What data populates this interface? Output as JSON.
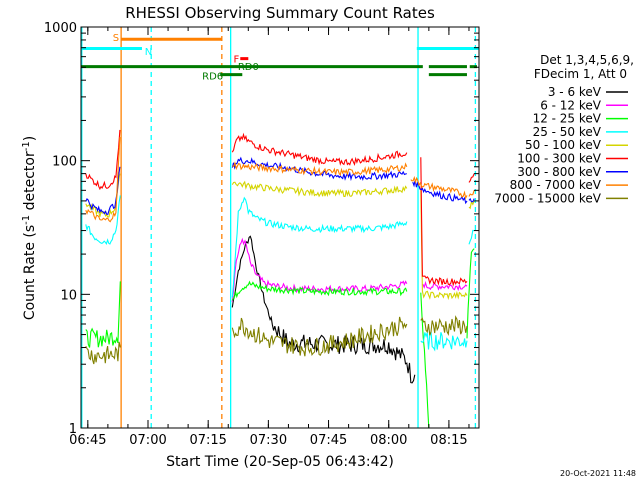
{
  "chart_data": {
    "type": "line",
    "title": "RHESSI Observing Summary Count Rates",
    "xlabel": "Start Time (20-Sep-05 06:43:42)",
    "ylabel_main": "Count Rate (s",
    "ylabel_sup": "-1",
    "ylabel_tail": " detector",
    "ylabel_sup2": "-1",
    "ylabel_close": ")",
    "y_scale": "log",
    "ylim": [
      1,
      1000
    ],
    "xlim_minutes": [
      -1.7,
      97.5
    ],
    "x_ticks": [
      {
        "m": 0,
        "label": "06:45"
      },
      {
        "m": 15,
        "label": "07:00"
      },
      {
        "m": 30,
        "label": "07:15"
      },
      {
        "m": 45,
        "label": "07:30"
      },
      {
        "m": 60,
        "label": "07:45"
      },
      {
        "m": 75,
        "label": "08:00"
      },
      {
        "m": 90,
        "label": "08:15"
      }
    ],
    "y_ticks": [
      {
        "v": 1,
        "label": "1"
      },
      {
        "v": 10,
        "label": "10"
      },
      {
        "v": 100,
        "label": "100"
      },
      {
        "v": 1000,
        "label": "1000"
      }
    ],
    "legend": {
      "placement": "right",
      "header1": "Det 1,3,4,5,6,9,",
      "header2": "FDecim 1, Att 0",
      "entries": [
        {
          "label": "3 - 6 keV",
          "color": "#000000"
        },
        {
          "label": "6 - 12 keV",
          "color": "#ff00ff"
        },
        {
          "label": "12 - 25 keV",
          "color": "#00ff00"
        },
        {
          "label": "25 - 50 keV",
          "color": "#00ffff"
        },
        {
          "label": "50 - 100 keV",
          "color": "#d4d400"
        },
        {
          "label": "100 - 300 keV",
          "color": "#ff0000"
        },
        {
          "label": "300 - 800 keV",
          "color": "#0000ff"
        },
        {
          "label": "800 - 7000 keV",
          "color": "#ff8000"
        },
        {
          "label": "7000 - 15000 keV",
          "color": "#808000"
        }
      ]
    },
    "flags": [
      {
        "label": "S",
        "color": "#ff8000",
        "start": 8.2,
        "end": 33.5,
        "y": 810
      },
      {
        "label": "N",
        "color": "#00ffff",
        "start": -1.7,
        "end": 13.5,
        "y": 690
      },
      {
        "label": "N",
        "color": "#00ffff",
        "start": 82.0,
        "end": 97.5,
        "y": 690
      },
      {
        "label": "F",
        "color": "#ff0000",
        "start": 38.0,
        "end": 40.0,
        "y": 580
      },
      {
        "label": "RD0",
        "color": "#007a00",
        "start": -1.7,
        "end": 83.5,
        "y": 505
      },
      {
        "label": "RD0",
        "color": "#007a00",
        "start": 85.0,
        "end": 94.5,
        "y": 505
      },
      {
        "label": "RD0",
        "color": "#007a00",
        "start": 95.2,
        "end": 97.0,
        "y": 505
      },
      {
        "label": "RD6",
        "color": "#007a00",
        "start": 33.0,
        "end": 38.5,
        "y": 440
      },
      {
        "label": "RD6",
        "color": "#007a00",
        "start": 85.0,
        "end": 94.5,
        "y": 440
      }
    ],
    "flag_labels": [
      {
        "text": "S",
        "color": "#ff8000",
        "m": 6.2,
        "y": 840
      },
      {
        "text": "N",
        "color": "#00ffff",
        "m": 14.2,
        "y": 660
      },
      {
        "text": "F",
        "color": "#ff0000",
        "m": 36.3,
        "y": 580
      },
      {
        "text": "RD0",
        "color": "#007a00",
        "m": 37.4,
        "y": 510
      },
      {
        "text": "RD6",
        "color": "#007a00",
        "m": 28.5,
        "y": 435
      }
    ],
    "vlines": [
      {
        "m": -1.5,
        "color": "#00ffff",
        "dash": false
      },
      {
        "m": 8.3,
        "color": "#ff8000",
        "dash": false
      },
      {
        "m": 15.8,
        "color": "#00ffff",
        "dash": true
      },
      {
        "m": 33.4,
        "color": "#ff8000",
        "dash": true
      },
      {
        "m": 35.6,
        "color": "#00ffff",
        "dash": false
      },
      {
        "m": 82.3,
        "color": "#00ffff",
        "dash": false
      },
      {
        "m": 96.6,
        "color": "#00ffff",
        "dash": true
      }
    ],
    "series": [
      {
        "name": "3 - 6 keV",
        "color": "#000000",
        "segments": [
          {
            "x": [
              36.0,
              37.5,
              39.0,
              40.5,
              42.0,
              44.0,
              46.0,
              50.0,
              55.0,
              60.0,
              65.0,
              70.0,
              75.0,
              77.0,
              79.5,
              80.5,
              81.5
            ],
            "y": [
              8,
              15,
              22,
              28,
              16,
              9,
              6,
              4.3,
              4.3,
              4.2,
              4.2,
              4.2,
              4.2,
              3.7,
              3.2,
              2.5,
              2.5
            ]
          }
        ]
      },
      {
        "name": "6 - 12 keV",
        "color": "#ff00ff",
        "segments": [
          {
            "x": [
              36.0,
              37.0,
              38.5,
              39.5,
              40.5,
              42.0,
              44.0,
              47.0,
              52.0,
              58.0,
              64.0,
              70.0,
              76.0,
              79.5
            ],
            "y": [
              9,
              18,
              26,
              23,
              17,
              14,
              12,
              11.5,
              11,
              11,
              11,
              11,
              11.5,
              12
            ]
          },
          {
            "x": [
              83.5,
              84.5,
              88.0,
              92.0,
              94.5
            ],
            "y": [
              12,
              11.5,
              11.5,
              11.5,
              11.5
            ]
          }
        ]
      },
      {
        "name": "12 - 25 keV",
        "color": "#00ff00",
        "segments": [
          {
            "x": [
              -0.5,
              2.0,
              5.0,
              7.5,
              8.1
            ],
            "y": [
              4.7,
              4.7,
              4.7,
              5.0,
              12.5
            ]
          },
          {
            "x": [
              36.0,
              38.0,
              40.0,
              42.0,
              45.0,
              50.0,
              55.0,
              60.0,
              65.0,
              70.0,
              75.0,
              79.5
            ],
            "y": [
              9,
              11,
              12,
              11.5,
              11,
              10.8,
              10.5,
              10.5,
              10.5,
              10.5,
              10.5,
              10.5
            ]
          },
          {
            "x": [
              83.0,
              83.6,
              85.0
            ],
            "y": [
              10,
              5,
              1
            ]
          },
          {
            "x": [
              94.5,
              95.6,
              96.3
            ],
            "y": [
              5,
              20,
              22
            ]
          }
        ]
      },
      {
        "name": "25 - 50 keV",
        "color": "#00ffff",
        "segments": [
          {
            "x": [
              -0.5,
              1.5,
              3.5,
              5.5,
              7.0,
              8.1
            ],
            "y": [
              33,
              27,
              25,
              25,
              30,
              55
            ]
          },
          {
            "x": [
              36.0,
              37.5,
              39.0,
              40.0,
              42.0,
              45.0,
              50.0,
              55.0,
              60.0,
              65.0,
              70.0,
              75.0,
              79.0,
              79.5
            ],
            "y": [
              9,
              40,
              55,
              42,
              37,
              34,
              32,
              31,
              31,
              31,
              31,
              32,
              34,
              35
            ]
          },
          {
            "x": [
              83.0,
              84.0,
              88.0,
              94.5
            ],
            "y": [
              4.5,
              4.5,
              4.5,
              4.5
            ]
          },
          {
            "x": [
              95.0,
              95.6,
              96.3
            ],
            "y": [
              25,
              27,
              30
            ]
          }
        ]
      },
      {
        "name": "50 - 100 keV",
        "color": "#d4d400",
        "segments": [
          {
            "x": [
              -0.5,
              1.0,
              3.0,
              5.0,
              7.0,
              8.0
            ],
            "y": [
              48,
              44,
              40,
              39,
              45,
              80
            ]
          },
          {
            "x": [
              36.0,
              37.0,
              40.0,
              45.0,
              50.0,
              55.0,
              60.0,
              65.0,
              70.0,
              75.0,
              79.5
            ],
            "y": [
              70,
              68,
              65,
              62,
              60,
              58,
              57,
              57,
              58,
              60,
              62
            ]
          },
          {
            "x": [
              83.0,
              83.4,
              88.0,
              92.0,
              94.5
            ],
            "y": [
              60,
              10,
              9.8,
              9.8,
              9.8
            ]
          },
          {
            "x": [
              95.0,
              95.6,
              96.3
            ],
            "y": [
              45,
              47,
              50
            ]
          }
        ]
      },
      {
        "name": "100 - 300 keV",
        "color": "#ff0000",
        "segments": [
          {
            "x": [
              -0.5,
              1.0,
              3.0,
              5.0,
              7.0,
              8.0
            ],
            "y": [
              80,
              72,
              65,
              65,
              75,
              170
            ]
          },
          {
            "x": [
              36.0,
              37.0,
              38.5,
              40.0,
              42.0,
              45.0,
              50.0,
              55.0,
              60.0,
              65.0,
              70.0,
              75.0,
              79.5
            ],
            "y": [
              110,
              140,
              150,
              140,
              130,
              120,
              112,
              104,
              98,
              98,
              102,
              108,
              115
            ]
          },
          {
            "x": [
              83.0,
              83.4,
              88.0,
              92.0,
              94.5
            ],
            "y": [
              110,
              13,
              12.5,
              12.5,
              12.5
            ]
          },
          {
            "x": [
              95.0,
              95.6,
              96.3
            ],
            "y": [
              70,
              75,
              80
            ]
          }
        ]
      },
      {
        "name": "300 - 800 keV",
        "color": "#0000ff",
        "segments": [
          {
            "x": [
              -0.5,
              1.0,
              3.0,
              5.0,
              7.0,
              8.0
            ],
            "y": [
              52,
              46,
              42,
              42,
              48,
              90
            ]
          },
          {
            "x": [
              36.0,
              37.5,
              40.0,
              42.0,
              45.0,
              50.0,
              55.0,
              60.0,
              65.0,
              70.0,
              75.0,
              79.5
            ],
            "y": [
              90,
              100,
              100,
              96,
              92,
              88,
              82,
              78,
              76,
              76,
              78,
              80
            ]
          },
          {
            "x": [
              81.0,
              84.0,
              88.0,
              92.0,
              94.5
            ],
            "y": [
              70,
              60,
              55,
              52,
              50
            ]
          },
          {
            "x": [
              95.0,
              95.6,
              96.3
            ],
            "y": [
              48,
              50,
              52
            ]
          }
        ]
      },
      {
        "name": "800 - 7000 keV",
        "color": "#ff8000",
        "segments": [
          {
            "x": [
              -0.5,
              1.0,
              3.0,
              5.0,
              7.0,
              8.0
            ],
            "y": [
              43,
              40,
              36,
              36,
              40,
              150
            ]
          },
          {
            "x": [
              36.0,
              37.0,
              40.0,
              45.0,
              50.0,
              55.0,
              60.0,
              65.0,
              70.0,
              75.0,
              79.5
            ],
            "y": [
              95,
              92,
              90,
              88,
              86,
              84,
              82,
              82,
              84,
              86,
              90
            ]
          },
          {
            "x": [
              80.5,
              84.0,
              88.0,
              92.0,
              94.5
            ],
            "y": [
              75,
              65,
              62,
              58,
              55
            ]
          },
          {
            "x": [
              95.0,
              95.6,
              96.3
            ],
            "y": [
              55,
              58,
              60
            ]
          }
        ]
      },
      {
        "name": "7000 - 15000 keV",
        "color": "#808000",
        "segments": [
          {
            "x": [
              -0.5,
              1.5,
              3.5,
              5.5,
              7.5,
              8.1
            ],
            "y": [
              3.7,
              3.5,
              3.5,
              3.5,
              3.6,
              4.0
            ]
          },
          {
            "x": [
              36.0,
              38.0,
              40.0,
              42.0,
              45.0,
              50.0,
              55.0,
              60.0,
              65.0,
              70.0,
              75.0,
              79.5
            ],
            "y": [
              5,
              6,
              5.5,
              5,
              4.5,
              4.2,
              4.0,
              4.2,
              4.5,
              5,
              5.5,
              6
            ]
          },
          {
            "x": [
              83.0,
              84.0,
              88.0,
              92.0,
              94.5
            ],
            "y": [
              5.8,
              5.8,
              5.8,
              5.8,
              5.8
            ]
          }
        ]
      }
    ],
    "timestamp": "20-Oct-2021 11:48"
  }
}
